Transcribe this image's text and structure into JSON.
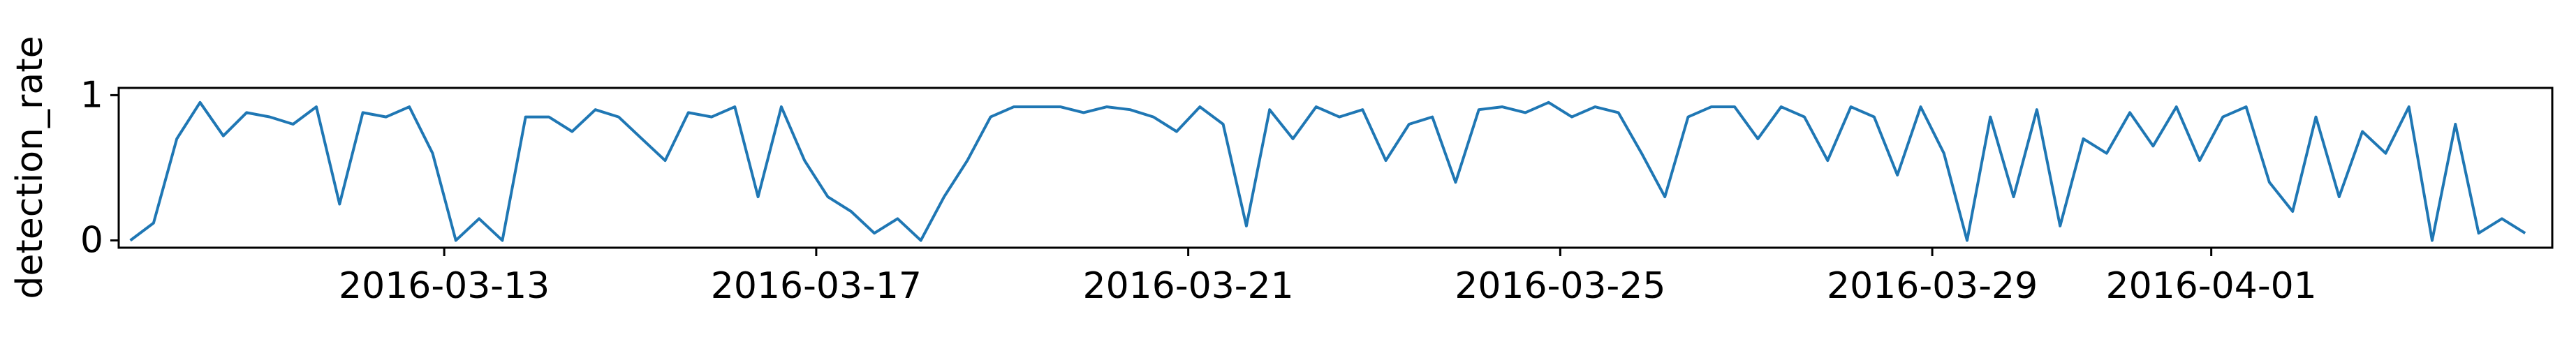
{
  "chart_data": {
    "type": "line",
    "title": "",
    "xlabel": "",
    "ylabel": "detection_rate",
    "x_tick_labels": [
      "2016-03-13",
      "2016-03-17",
      "2016-03-21",
      "2016-03-25",
      "2016-03-29",
      "2016-04-01"
    ],
    "y_tick_labels": [
      "0",
      "1"
    ],
    "y_ticks": [
      0,
      1
    ],
    "ylim": [
      -0.05,
      1.05
    ],
    "xlim": [
      "2016-03-09 12:00",
      "2016-04-04 16:00"
    ],
    "grid": false,
    "legend": "none",
    "series": [
      {
        "color": "#1f77b4",
        "x": [
          "2016-03-09 15:00",
          "2016-03-09 21:00",
          "2016-03-10 03:00",
          "2016-03-10 09:00",
          "2016-03-10 15:00",
          "2016-03-10 21:00",
          "2016-03-11 03:00",
          "2016-03-11 09:00",
          "2016-03-11 15:00",
          "2016-03-11 21:00",
          "2016-03-12 03:00",
          "2016-03-12 09:00",
          "2016-03-12 15:00",
          "2016-03-12 21:00",
          "2016-03-13 03:00",
          "2016-03-13 09:00",
          "2016-03-13 15:00",
          "2016-03-13 21:00",
          "2016-03-14 03:00",
          "2016-03-14 09:00",
          "2016-03-14 15:00",
          "2016-03-14 21:00",
          "2016-03-15 03:00",
          "2016-03-15 09:00",
          "2016-03-15 15:00",
          "2016-03-15 21:00",
          "2016-03-16 03:00",
          "2016-03-16 09:00",
          "2016-03-16 15:00",
          "2016-03-16 21:00",
          "2016-03-17 03:00",
          "2016-03-17 09:00",
          "2016-03-17 15:00",
          "2016-03-17 21:00",
          "2016-03-18 03:00",
          "2016-03-18 09:00",
          "2016-03-18 15:00",
          "2016-03-18 21:00",
          "2016-03-19 03:00",
          "2016-03-19 09:00",
          "2016-03-19 15:00",
          "2016-03-19 21:00",
          "2016-03-20 03:00",
          "2016-03-20 09:00",
          "2016-03-20 15:00",
          "2016-03-20 21:00",
          "2016-03-21 03:00",
          "2016-03-21 09:00",
          "2016-03-21 15:00",
          "2016-03-21 21:00",
          "2016-03-22 03:00",
          "2016-03-22 09:00",
          "2016-03-22 15:00",
          "2016-03-22 21:00",
          "2016-03-23 03:00",
          "2016-03-23 09:00",
          "2016-03-23 15:00",
          "2016-03-23 21:00",
          "2016-03-24 03:00",
          "2016-03-24 09:00",
          "2016-03-24 15:00",
          "2016-03-24 21:00",
          "2016-03-25 03:00",
          "2016-03-25 09:00",
          "2016-03-25 15:00",
          "2016-03-25 21:00",
          "2016-03-26 03:00",
          "2016-03-26 09:00",
          "2016-03-26 15:00",
          "2016-03-26 21:00",
          "2016-03-27 03:00",
          "2016-03-27 09:00",
          "2016-03-27 15:00",
          "2016-03-27 21:00",
          "2016-03-28 03:00",
          "2016-03-28 09:00",
          "2016-03-28 15:00",
          "2016-03-28 21:00",
          "2016-03-29 03:00",
          "2016-03-29 09:00",
          "2016-03-29 15:00",
          "2016-03-29 21:00",
          "2016-03-30 03:00",
          "2016-03-30 09:00",
          "2016-03-30 15:00",
          "2016-03-30 21:00",
          "2016-03-31 03:00",
          "2016-03-31 09:00",
          "2016-03-31 15:00",
          "2016-03-31 21:00",
          "2016-04-01 03:00",
          "2016-04-01 09:00",
          "2016-04-01 15:00",
          "2016-04-01 21:00",
          "2016-04-02 03:00",
          "2016-04-02 09:00",
          "2016-04-02 15:00",
          "2016-04-02 21:00",
          "2016-04-03 03:00",
          "2016-04-03 09:00",
          "2016-04-03 15:00",
          "2016-04-03 21:00",
          "2016-04-04 03:00",
          "2016-04-04 09:00"
        ],
        "y": [
          0.0,
          0.12,
          0.7,
          0.95,
          0.72,
          0.88,
          0.85,
          0.8,
          0.92,
          0.25,
          0.88,
          0.85,
          0.92,
          0.6,
          0.0,
          0.15,
          0.0,
          0.85,
          0.85,
          0.75,
          0.9,
          0.85,
          0.7,
          0.55,
          0.88,
          0.85,
          0.92,
          0.3,
          0.92,
          0.55,
          0.3,
          0.2,
          0.05,
          0.15,
          0.0,
          0.3,
          0.55,
          0.85,
          0.92,
          0.92,
          0.92,
          0.88,
          0.92,
          0.9,
          0.85,
          0.75,
          0.92,
          0.8,
          0.1,
          0.9,
          0.7,
          0.92,
          0.85,
          0.9,
          0.55,
          0.8,
          0.85,
          0.4,
          0.9,
          0.92,
          0.88,
          0.95,
          0.85,
          0.92,
          0.88,
          0.6,
          0.3,
          0.85,
          0.92,
          0.92,
          0.7,
          0.92,
          0.85,
          0.55,
          0.92,
          0.85,
          0.45,
          0.92,
          0.6,
          0.0,
          0.85,
          0.3,
          0.9,
          0.1,
          0.7,
          0.6,
          0.88,
          0.65,
          0.92,
          0.55,
          0.85,
          0.92,
          0.4,
          0.2,
          0.85,
          0.3,
          0.75,
          0.6,
          0.92,
          0.0,
          0.8,
          0.05,
          0.15,
          0.05
        ]
      }
    ]
  }
}
